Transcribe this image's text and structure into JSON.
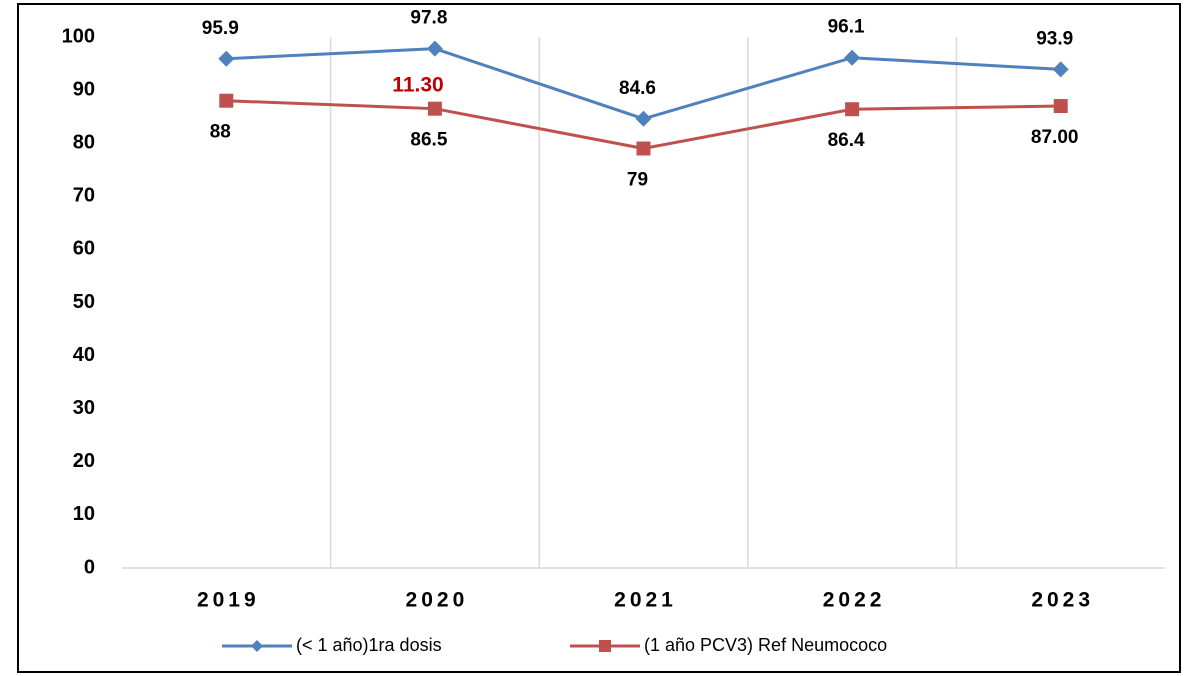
{
  "chart_data": {
    "type": "line",
    "categories": [
      "2019",
      "2020",
      "2021",
      "2022",
      "2023"
    ],
    "series": [
      {
        "name": "(< 1 año)1ra dosis",
        "color": "#4f81bd",
        "marker": "diamond",
        "values": [
          95.9,
          97.8,
          84.6,
          96.1,
          93.9
        ]
      },
      {
        "name": "(1 año PCV3) Ref Neumococo",
        "color": "#c0504d",
        "marker": "square",
        "values": [
          88,
          86.5,
          79,
          86.4,
          87
        ],
        "value_labels": [
          "88",
          "86.5",
          "79",
          "86.4",
          "87.00"
        ]
      }
    ],
    "annotations": [
      {
        "text": "11.30",
        "color": "#c00000"
      }
    ],
    "ylim": [
      0,
      100
    ],
    "yticks": [
      0,
      10,
      20,
      30,
      40,
      50,
      60,
      70,
      80,
      90,
      100
    ],
    "grid": "x",
    "legend": "bottom"
  }
}
